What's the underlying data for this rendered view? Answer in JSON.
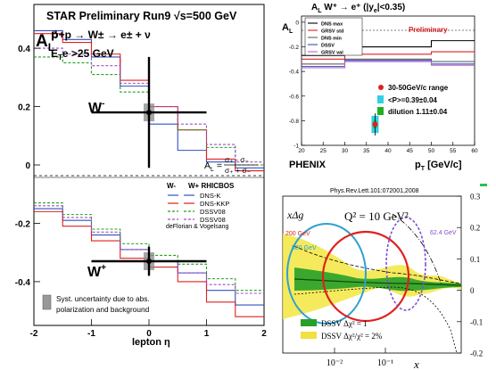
{
  "chart_data": [
    {
      "type": "line",
      "title_line1": "STAR  Preliminary  Run9   √s=500 GeV",
      "title_line2": "p⃗+p → W± → e± + ν",
      "title_line3": "E",
      "title_line3_sub": "T",
      "title_line3_rest": "e >25 GeV",
      "ylabel": "A",
      "ylabel_sub": "L",
      "xlabel": "lepton η",
      "xlim": [
        -2,
        2
      ],
      "ylim": [
        -0.55,
        0.55
      ],
      "xticks": [
        "-2",
        "-1",
        "0",
        "1",
        "2"
      ],
      "yticks": [
        "0.4",
        "0.2",
        "0",
        "-0.2",
        "-0.4"
      ],
      "formula_lhs": "A",
      "formula_lhs_sub": "L",
      "formula_num": "σ₊ - σ₋",
      "formula_den": "σ₊ + σ₋",
      "wminus_label": "W",
      "wminus_sup": "-",
      "wplus_label": "W",
      "wplus_sup": "+",
      "legend_header_left": "W-",
      "legend_header_right": "W+ RHICBOS",
      "legend_footer_line1": "deFlorian & Vogelsang",
      "syst_text_line1": "Syst. uncertainty due to abs.",
      "syst_text_line2": "polarization and background",
      "colors": {
        "dnsk": "#3050c0",
        "dnskkp": "#e02020",
        "dssv": "#20a020",
        "dssv08": "#a050c0",
        "data": "#000000",
        "syst": "#888888"
      },
      "series": [
        {
          "name": "DNS-K",
          "dash": "solid",
          "wminus": [
            0.46,
            0.43,
            0.37,
            0.27,
            0.14,
            0.05,
            0.01,
            -0.01
          ],
          "wplus": [
            -0.15,
            -0.19,
            -0.24,
            -0.29,
            -0.33,
            -0.37,
            -0.43,
            -0.48
          ]
        },
        {
          "name": "DNS-KKP",
          "dash": "solid",
          "wminus": [
            0.45,
            0.42,
            0.38,
            0.29,
            0.2,
            0.12,
            0.02,
            -0.02
          ],
          "wplus": [
            -0.16,
            -0.21,
            -0.26,
            -0.32,
            -0.35,
            -0.4,
            -0.47,
            -0.52
          ]
        },
        {
          "name": "DSSV08",
          "dash": "dashed",
          "wminus": [
            0.37,
            0.35,
            0.31,
            0.25,
            0.18,
            0.12,
            0.06,
            0.0
          ],
          "wplus": [
            -0.13,
            -0.17,
            -0.22,
            -0.27,
            -0.31,
            -0.34,
            -0.39,
            -0.43
          ]
        },
        {
          "name": "DSSV08",
          "dash": "dashed",
          "wminus": [
            0.4,
            0.38,
            0.34,
            0.28,
            0.2,
            0.14,
            0.07,
            0.01
          ],
          "wplus": [
            -0.14,
            -0.18,
            -0.23,
            -0.29,
            -0.33,
            -0.37,
            -0.41,
            -0.44
          ]
        }
      ],
      "bin_edges": [
        -2,
        -1.5,
        -1,
        -0.5,
        0,
        0.5,
        1,
        1.5,
        2
      ],
      "data_points": [
        {
          "label": "W-",
          "eta": 0.0,
          "al": 0.18,
          "xerr": 1.0,
          "yerr": 0.19
        },
        {
          "label": "W+",
          "eta": 0.0,
          "al": -0.33,
          "xerr": 1.0,
          "yerr": 0.05
        }
      ]
    },
    {
      "type": "line",
      "title": "A",
      "title_sub": "L",
      "title_rest": " W⁺ → e⁺ (|y",
      "title_sub2": "e",
      "title_end": "|<0.35)",
      "ylabel": "A",
      "ylabel_sub": "L",
      "xlabel": "p",
      "xlabel_sub": "T",
      "xlabel_rest": "  [GeV/c]",
      "preliminary": "Preliminary",
      "logo": "PHENIX",
      "xlim": [
        20,
        60
      ],
      "ylim": [
        -1.0,
        0.05
      ],
      "xticks": [
        "20",
        "25",
        "30",
        "35",
        "40",
        "45",
        "50",
        "55",
        "60"
      ],
      "yticks": [
        "0",
        "-0.2",
        "-0.4",
        "-0.6",
        "-0.8",
        "-1"
      ],
      "legend": [
        "DNS max",
        "GRSV std",
        "DNS min",
        "DSSV",
        "GRSV val"
      ],
      "legend_colors": [
        "#000000",
        "#e02020",
        "#606060",
        "#3050c0",
        "#c060c0"
      ],
      "annot_range": "30-50GeV/c range",
      "annot_pt": "<P>=0.39±0.04",
      "annot_dilution": "dilution 1.11±0.04",
      "data_point": {
        "pt": 37,
        "al": -0.83,
        "stat": 0.07
      },
      "series": [
        {
          "name": "DNS max",
          "values": [
            -0.27,
            -0.27,
            -0.2,
            -0.2,
            -0.2,
            -0.2,
            -0.15,
            -0.15
          ]
        },
        {
          "name": "GRSV std",
          "values": [
            -0.3,
            -0.3,
            -0.26,
            -0.26,
            -0.26,
            -0.26,
            -0.24,
            -0.24
          ]
        },
        {
          "name": "DNS min",
          "values": [
            -0.34,
            -0.34,
            -0.3,
            -0.3,
            -0.3,
            -0.3,
            -0.32,
            -0.32
          ]
        },
        {
          "name": "DSSV",
          "values": [
            -0.36,
            -0.36,
            -0.31,
            -0.31,
            -0.31,
            -0.31,
            -0.34,
            -0.34
          ]
        },
        {
          "name": "GRSV val",
          "values": [
            -0.37,
            -0.37,
            -0.32,
            -0.32,
            -0.32,
            -0.32,
            -0.35,
            -0.35
          ]
        }
      ]
    },
    {
      "type": "line",
      "ref": "Phys.Rev.Lett.101:072001,2008",
      "ylabel": "xΔg",
      "q2_label": "Q² = 10 GeV²",
      "xlabel": "x",
      "ylim": [
        -0.2,
        0.3
      ],
      "yticks": [
        "0.3",
        "0.2",
        "0.1",
        "0",
        "-0.1",
        "-0.2"
      ],
      "xticks": [
        "10⁻²",
        "10⁻¹"
      ],
      "band_200": "200 GeV",
      "band_500": "500 GeV",
      "band_62": "62.4 GeV",
      "legend": [
        "DSSV  Δχ² = 1",
        "DSSV  Δχ²/χ² = 2%"
      ],
      "legend_colors": [
        "#28a028",
        "#f0e040"
      ],
      "ellipse_colors": {
        "200": "#e02020",
        "500": "#30a0d0",
        "62": "#8050d0"
      }
    }
  ]
}
